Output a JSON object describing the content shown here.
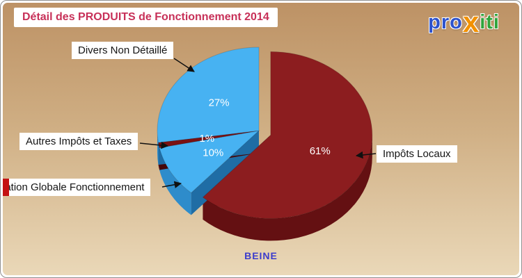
{
  "header": {
    "title": "Détail des PRODUITS de Fonctionnement 2014",
    "title_color": "#c73058"
  },
  "logo": {
    "parts": [
      {
        "text": "pro",
        "color": "#2d52cc"
      },
      {
        "text": "x",
        "color": "#f29100"
      },
      {
        "text": "iti",
        "color": "#2fa43b"
      }
    ]
  },
  "footer": {
    "text": "BEINE",
    "color": "#3c3ccc"
  },
  "chart_data": {
    "type": "pie",
    "style": "3d-exploded",
    "title": "Détail des PRODUITS de Fonctionnement 2014",
    "unit": "%",
    "legend_position": "callout labels with leader lines",
    "background_gradient": [
      "#bd9265",
      "#ead8b8"
    ],
    "slices": [
      {
        "label": "Impôts Locaux",
        "value": 61,
        "color": "#8c1d1f",
        "side": "#641012",
        "dark": "#4e0a0c",
        "exploded": true
      },
      {
        "label": "Dotation Globale Fonctionnement",
        "value": 10,
        "color": "#47b2f2",
        "side": "#2e8ccb",
        "dark": "#1f6da5",
        "exploded": false
      },
      {
        "label": "Autres Impôts et Taxes",
        "value": 1,
        "color": "#7a1113",
        "side": "#570a0c",
        "dark": "#450709",
        "exploded": false
      },
      {
        "label": "Divers Non Détaillé",
        "value": 27,
        "color": "#47b2f2",
        "side": "#2e8ccb",
        "dark": "#1f6da5",
        "exploded": false
      }
    ]
  }
}
